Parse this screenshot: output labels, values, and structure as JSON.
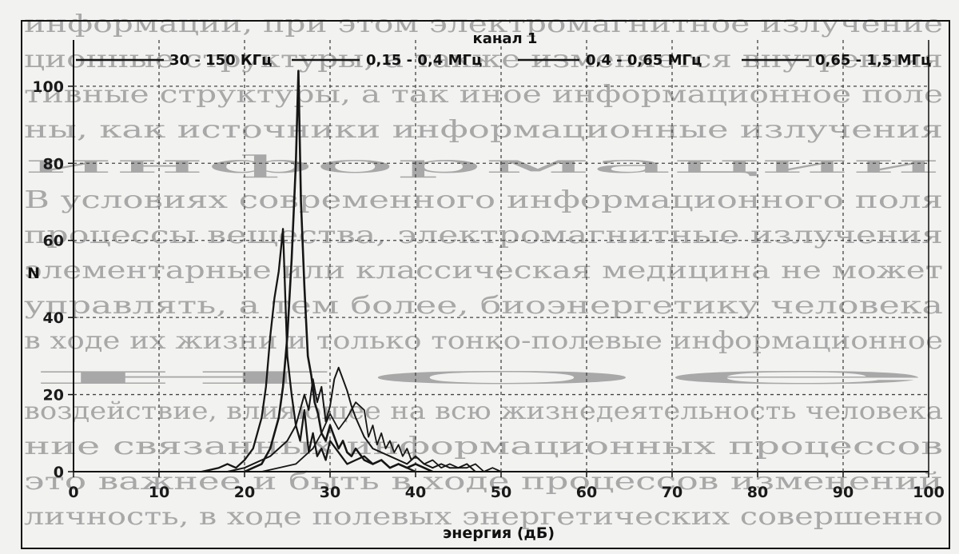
{
  "background_text_lines": [
    "информации, при этом электромагнитное излучение",
    "ционные структуры, а также изменяется внутренняя",
    "тивные структуры, а так иное информационное поле",
    "ны, как источники информационные излучения",
    "информации",
    "В условиях современного информационного поля",
    "процессы вещества, электромагнитные излучения",
    "элементарные или классическая медицина не может",
    "управлять, а тем более, биоэнергетику человека",
    "в ходе их жизни и только тонко-полевые информационное",
    "ное",
    "воздействие, влияющее на всю жизнедеятельность человека",
    "ние связанных информационных процессов",
    "это важнее и быть в ходе процессов изменений",
    "личность, в ходе полевых энергетических совершенно"
  ],
  "chart_data": {
    "type": "line",
    "title": "канал 1",
    "xlabel": "энергия (дБ)",
    "ylabel": "N",
    "xlim": [
      0,
      100
    ],
    "ylim": [
      0,
      112
    ],
    "x_ticks": [
      0,
      10,
      20,
      30,
      40,
      50,
      60,
      70,
      80,
      90,
      100
    ],
    "x_tick_labels": [
      "0",
      "10",
      "20",
      "30",
      "40",
      "50",
      "60",
      "70",
      "80",
      "90",
      "100"
    ],
    "y_ticks": [
      0,
      20,
      40,
      60,
      80,
      100
    ],
    "y_tick_labels": [
      "0",
      "20",
      "40",
      "60",
      "80",
      "100"
    ],
    "grid": true,
    "legend_position": "top",
    "series": [
      {
        "name": "30 - 150 КГц",
        "x": [
          15,
          17,
          18,
          19,
          20,
          21,
          22,
          22.5,
          23,
          23.5,
          24,
          24.5,
          25,
          25.5,
          26,
          26.5,
          27,
          27.5,
          28,
          28.5,
          29,
          29.5,
          30,
          31,
          32,
          33,
          34,
          35,
          36,
          37,
          38,
          39,
          40
        ],
        "y": [
          0,
          1,
          2,
          1,
          3,
          6,
          14,
          22,
          35,
          45,
          52,
          63,
          30,
          20,
          12,
          8,
          16,
          5,
          10,
          4,
          6,
          3,
          8,
          5,
          2,
          3,
          4,
          2,
          3,
          1,
          2,
          1,
          0
        ]
      },
      {
        "name": "0,15 - 0,4 МГц",
        "x": [
          20,
          21,
          22,
          23,
          24,
          24.5,
          25,
          25.5,
          26,
          26.3,
          26.6,
          27,
          27.4,
          27.8,
          28.2,
          28.6,
          29,
          29.5,
          30,
          30.5,
          31,
          31.5,
          32,
          32.5,
          33,
          34,
          35,
          36,
          37,
          38,
          39,
          40,
          41,
          42
        ],
        "y": [
          0,
          1,
          2,
          6,
          14,
          22,
          35,
          55,
          80,
          104,
          70,
          48,
          30,
          25,
          18,
          15,
          10,
          8,
          12,
          9,
          6,
          8,
          5,
          4,
          6,
          3,
          2,
          3,
          1,
          2,
          1,
          2,
          1,
          0
        ]
      },
      {
        "name": "0,4 - 0,65 МГц",
        "x": [
          18,
          20,
          22,
          23,
          24,
          25,
          26,
          27,
          27.5,
          28,
          28.5,
          29,
          29.5,
          30,
          30.5,
          31,
          31.5,
          32,
          32.5,
          33,
          34,
          35,
          36,
          37,
          38,
          39,
          40,
          41,
          42,
          43,
          44,
          45,
          46,
          47
        ],
        "y": [
          0,
          1,
          3,
          4,
          6,
          8,
          12,
          20,
          16,
          24,
          18,
          22,
          13,
          17,
          24,
          27,
          24,
          21,
          17,
          14,
          9,
          6,
          5,
          4,
          3,
          2,
          4,
          2,
          1,
          2,
          1,
          1,
          2,
          0
        ]
      },
      {
        "name": "0,65 - 1,5 МГц",
        "x": [
          22,
          24,
          26,
          27,
          28,
          29,
          30,
          31,
          32,
          33,
          34,
          34.5,
          35,
          35.5,
          36,
          36.5,
          37,
          37.5,
          38,
          38.5,
          39,
          39.5,
          40,
          41,
          42,
          43,
          44,
          45,
          46,
          47,
          48,
          49,
          50
        ],
        "y": [
          0,
          1,
          2,
          4,
          6,
          10,
          15,
          11,
          14,
          18,
          16,
          9,
          12,
          7,
          10,
          6,
          8,
          5,
          7,
          4,
          6,
          3,
          4,
          2,
          3,
          1,
          2,
          1,
          1,
          2,
          0,
          1,
          0
        ]
      }
    ]
  }
}
